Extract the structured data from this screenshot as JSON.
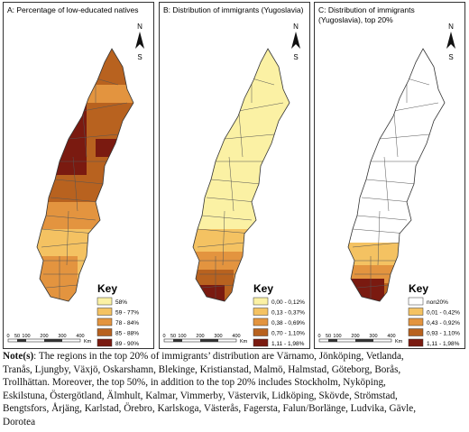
{
  "panels": [
    {
      "title_lines": [
        "A: Percentage of low-educated natives"
      ],
      "key_title": "Key",
      "legend": [
        {
          "label": "58%",
          "color": "#fbf1a4"
        },
        {
          "label": "59 - 77%",
          "color": "#f4c262"
        },
        {
          "label": "78 - 84%",
          "color": "#e3943f"
        },
        {
          "label": "85 - 88%",
          "color": "#b8621f"
        },
        {
          "label": "89 - 90%",
          "color": "#7a1a10"
        }
      ],
      "north": "N",
      "south": "S",
      "scale": [
        "0",
        "50",
        "100",
        "200",
        "300",
        "400"
      ],
      "scale_unit": "Km"
    },
    {
      "title_lines": [
        "B: Distribution of immigrants (Yugoslavia)"
      ],
      "key_title": "Key",
      "legend": [
        {
          "label": "0,00 - 0,12%",
          "color": "#fbf1a4"
        },
        {
          "label": "0,13 - 0,37%",
          "color": "#f4c262"
        },
        {
          "label": "0,38 - 0,69%",
          "color": "#e3943f"
        },
        {
          "label": "0,70 - 1,10%",
          "color": "#b8621f"
        },
        {
          "label": "1,11 - 1,98%",
          "color": "#7a1a10"
        }
      ],
      "north": "N",
      "south": "S",
      "scale": [
        "0",
        "50",
        "100",
        "200",
        "300",
        "400"
      ],
      "scale_unit": "Km"
    },
    {
      "title_lines": [
        "C: Distribution of immigrants",
        "(Yugoslavia), top 20%"
      ],
      "key_title": "Key",
      "legend": [
        {
          "label": "non20%",
          "color": "#ffffff"
        },
        {
          "label": "0,01 - 0,42%",
          "color": "#f4c262"
        },
        {
          "label": "0,43 - 0,92%",
          "color": "#e3943f"
        },
        {
          "label": "0,93 - 1,10%",
          "color": "#b8621f"
        },
        {
          "label": "1,11 - 1,98%",
          "color": "#7a1a10"
        }
      ],
      "north": "N",
      "south": "S",
      "scale": [
        "0",
        "50",
        "100",
        "200",
        "300",
        "400"
      ],
      "scale_unit": "Km"
    }
  ],
  "note": {
    "label": "Note(s)",
    "lines": [
      ": The regions in the top 20% of immigrants’ distribution are Värnamo, Jönköping, Vetlanda,",
      "Tranås, Ljungby, Växjö, Oskarshamn, Blekinge, Kristianstad, Malmö, Halmstad, Göteborg, Borås,",
      "Trollhättan. Moreover, the top 50%, in addition to the top 20% includes Stockholm, Nyköping,",
      "Eskilstuna, Östergötland, Älmhult, Kalmar, Vimmerby, Västervik, Lidköping, Skövde, Strömstad,",
      "Bengtsfors, Årjäng, Karlstad, Örebro, Karlskoga, Västerås, Fagersta, Falun/Borlänge, Ludvika, Gävle,",
      "Dorotea"
    ]
  }
}
